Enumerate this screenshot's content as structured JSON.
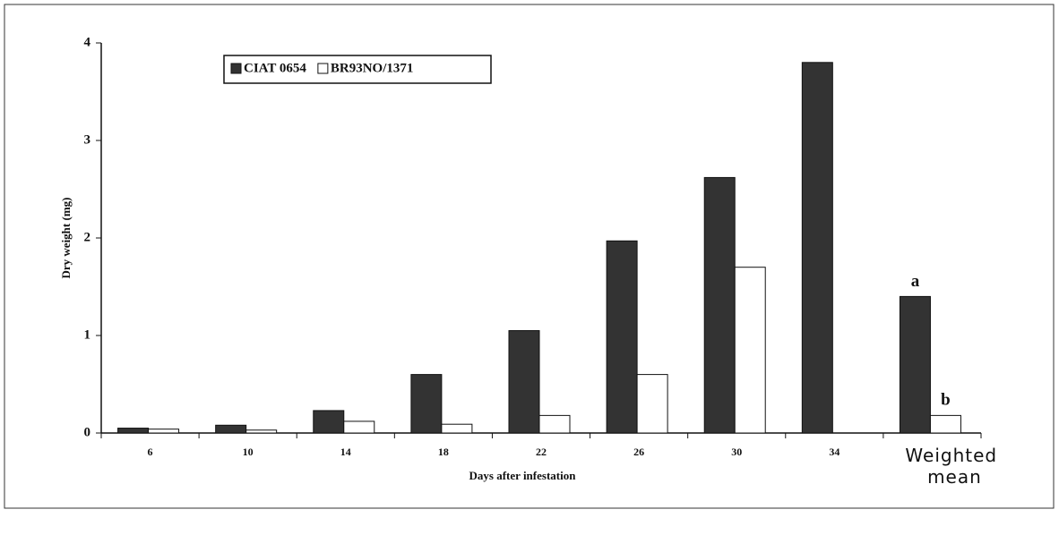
{
  "chart_data": {
    "type": "bar",
    "categories": [
      "6",
      "10",
      "14",
      "18",
      "22",
      "26",
      "30",
      "34",
      "Weighted mean"
    ],
    "series": [
      {
        "name": "CIAT 0654",
        "color": "#333333",
        "values": [
          0.05,
          0.08,
          0.23,
          0.6,
          1.05,
          1.97,
          2.62,
          3.8,
          1.4
        ]
      },
      {
        "name": "BR93NO/1371",
        "color": "#ffffff",
        "values": [
          0.04,
          0.03,
          0.12,
          0.09,
          0.18,
          0.6,
          1.7,
          null,
          0.18
        ]
      }
    ],
    "x_label": "Days after infestation",
    "y_label": "Dry weight (mg)",
    "annotations": [
      "a",
      "b"
    ],
    "ylim": [
      0,
      4
    ],
    "yticks": [
      0,
      1,
      2,
      3,
      4
    ],
    "legend": "top-left",
    "grid": false
  }
}
